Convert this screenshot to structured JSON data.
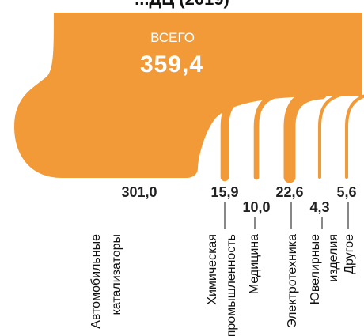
{
  "title_fragment": "...ДЦ (2019)",
  "accent_color": "#F29A38",
  "chart_data": {
    "type": "sankey",
    "total_label": "ВСЕГО",
    "total_value": "359,4",
    "unit": "",
    "categories": [
      {
        "label_lines": [
          "Автомобильные",
          "катализаторы"
        ],
        "value": 301.0,
        "value_text": "301,0"
      },
      {
        "label_lines": [
          "Химическая",
          "промышленность"
        ],
        "value": 15.9,
        "value_text": "15,9"
      },
      {
        "label_lines": [
          "Медицина"
        ],
        "value": 10.0,
        "value_text": "10,0"
      },
      {
        "label_lines": [
          "Электротехника"
        ],
        "value": 22.6,
        "value_text": "22,6"
      },
      {
        "label_lines": [
          "Ювелирные",
          "изделия"
        ],
        "value": 4.3,
        "value_text": "4,3"
      },
      {
        "label_lines": [
          "Другое"
        ],
        "value": 5.6,
        "value_text": "5,6"
      }
    ]
  }
}
